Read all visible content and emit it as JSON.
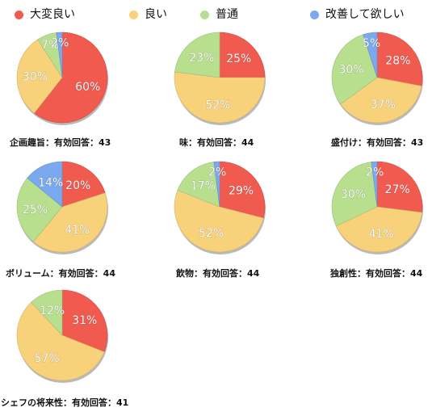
{
  "colors": {
    "great": "#f15a4f",
    "good": "#f7d27a",
    "normal": "#b7df8e",
    "improve": "#7aa9f0"
  },
  "legend": [
    {
      "label": "大変良い",
      "color": "#f15a4f"
    },
    {
      "label": "良い",
      "color": "#f7d27a"
    },
    {
      "label": "普通",
      "color": "#b7df8e"
    },
    {
      "label": "改善して欲しい",
      "color": "#7aa9f0"
    }
  ],
  "chart_data": [
    {
      "type": "pie",
      "title": "企画趣旨：有効回答：43",
      "categories": [
        "大変良い",
        "良い",
        "普通",
        "改善して欲しい"
      ],
      "values": [
        60,
        30,
        7,
        2
      ],
      "labels": [
        "60%",
        "30%",
        "7%",
        "2%"
      ]
    },
    {
      "type": "pie",
      "title": "味：有効回答：44",
      "categories": [
        "大変良い",
        "良い",
        "普通",
        "改善して欲しい"
      ],
      "values": [
        25,
        52,
        23,
        0
      ],
      "labels": [
        "25%",
        "52%",
        "23%",
        ""
      ]
    },
    {
      "type": "pie",
      "title": "盛付け：有効回答：43",
      "categories": [
        "大変良い",
        "良い",
        "普通",
        "改善して欲しい"
      ],
      "values": [
        28,
        37,
        30,
        5
      ],
      "labels": [
        "28%",
        "37%",
        "30%",
        "5%"
      ]
    },
    {
      "type": "pie",
      "title": "ボリューム：有効回答：44",
      "categories": [
        "大変良い",
        "良い",
        "普通",
        "改善して欲しい"
      ],
      "values": [
        20,
        41,
        25,
        14
      ],
      "labels": [
        "20%",
        "41%",
        "25%",
        "14%"
      ]
    },
    {
      "type": "pie",
      "title": "飲物：有効回答：44",
      "categories": [
        "大変良い",
        "良い",
        "普通",
        "改善して欲しい"
      ],
      "values": [
        29,
        52,
        17,
        2
      ],
      "labels": [
        "29%",
        "52%",
        "17%",
        "2%"
      ]
    },
    {
      "type": "pie",
      "title": "独創性：有効回答：44",
      "categories": [
        "大変良い",
        "良い",
        "普通",
        "改善して欲しい"
      ],
      "values": [
        27,
        41,
        30,
        2
      ],
      "labels": [
        "27%",
        "41%",
        "30%",
        "2%"
      ]
    },
    {
      "type": "pie",
      "title": "シェフの将来性：有効回答：41",
      "categories": [
        "大変良い",
        "良い",
        "普通",
        "改善して欲しい"
      ],
      "values": [
        31,
        57,
        12,
        0
      ],
      "labels": [
        "31%",
        "57%",
        "12%",
        ""
      ]
    }
  ]
}
